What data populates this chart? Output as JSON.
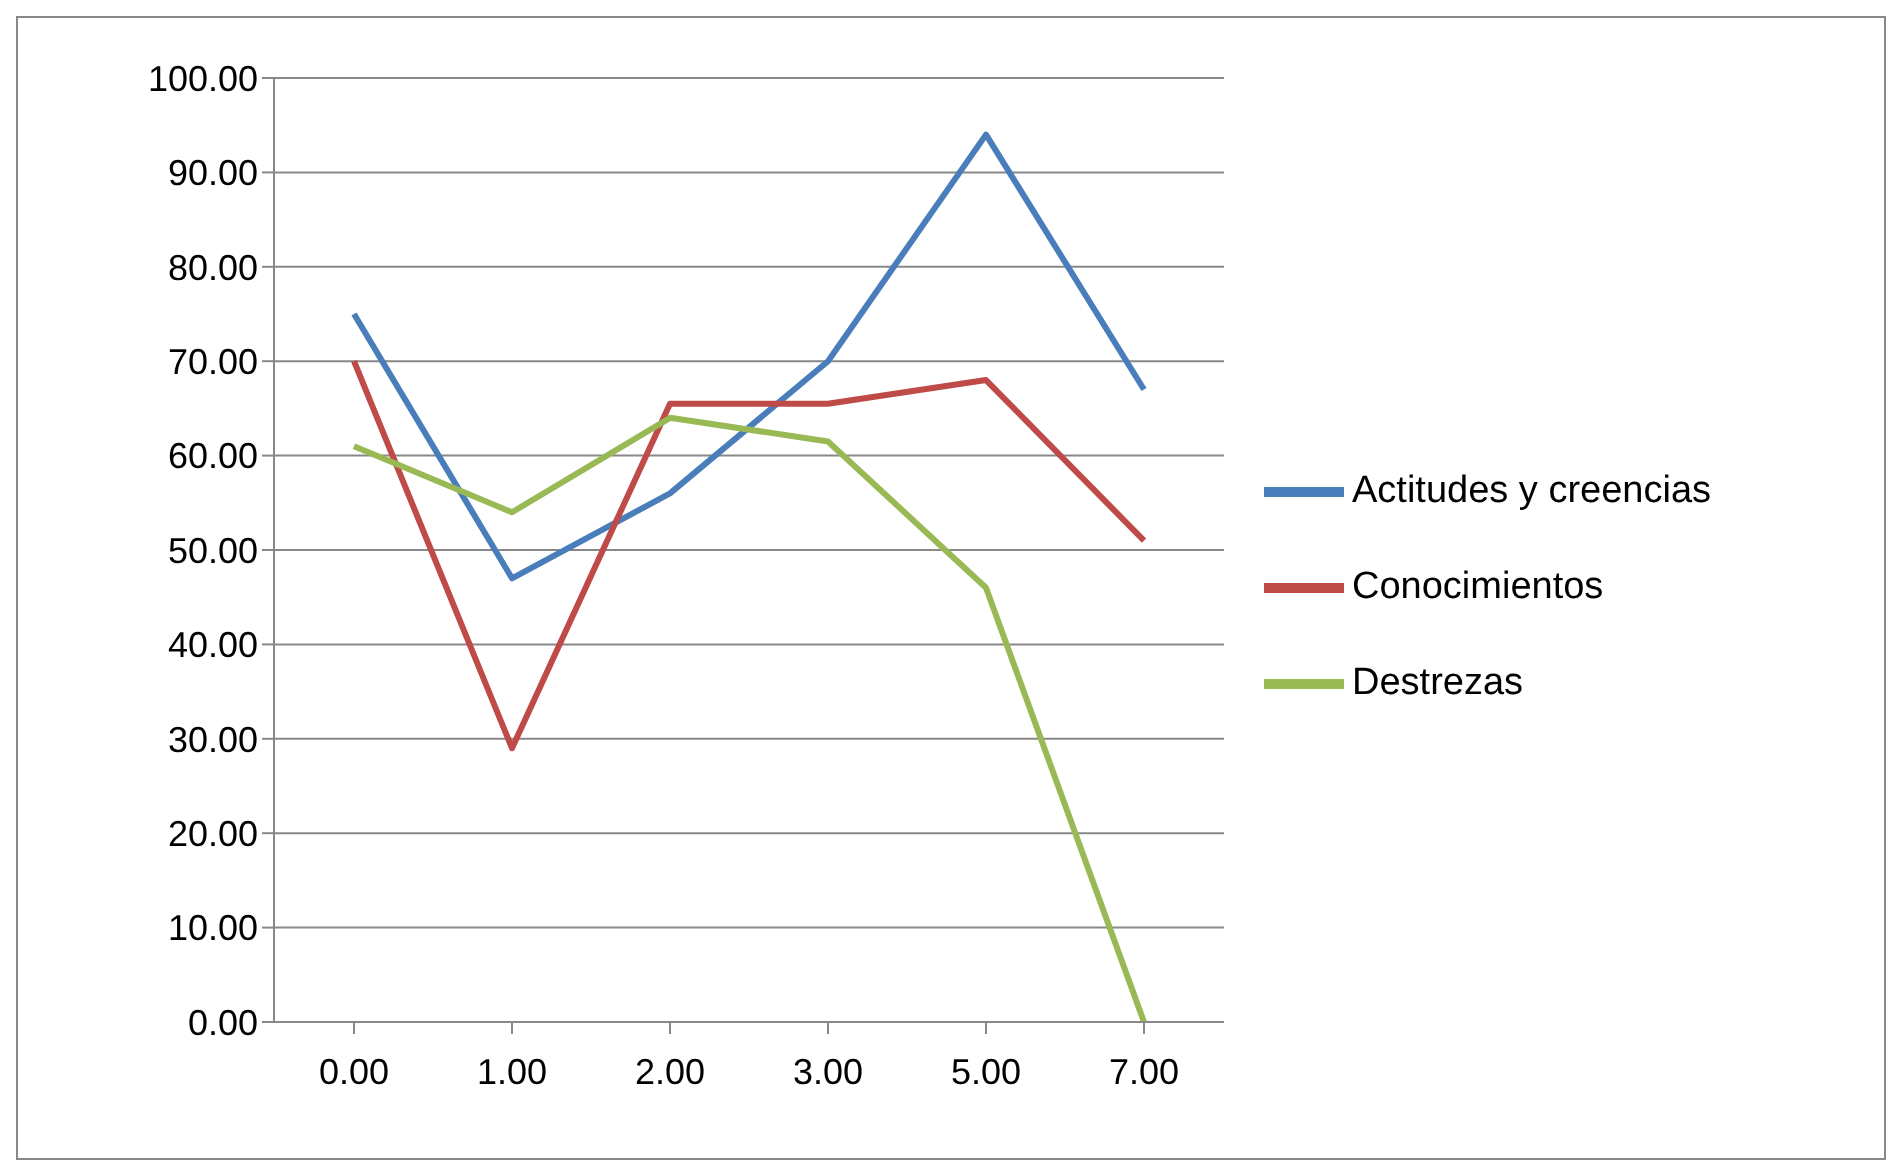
{
  "chart_data": {
    "type": "line",
    "categories": [
      "0.00",
      "1.00",
      "2.00",
      "3.00",
      "5.00",
      "7.00"
    ],
    "series": [
      {
        "name": "Actitudes y creencias",
        "color": "#4a7ebb",
        "values": [
          75,
          47,
          56,
          70,
          94,
          67
        ]
      },
      {
        "name": "Conocimientos",
        "color": "#be4b48",
        "values": [
          70,
          29,
          65.5,
          65.5,
          68,
          51
        ]
      },
      {
        "name": "Destrezas",
        "color": "#98b954",
        "values": [
          61,
          54,
          64,
          61.5,
          46,
          0
        ]
      }
    ],
    "ylim": [
      0,
      100
    ],
    "yticks": [
      {
        "value": 0,
        "label": "0.00"
      },
      {
        "value": 10,
        "label": "10.00"
      },
      {
        "value": 20,
        "label": "20.00"
      },
      {
        "value": 30,
        "label": "30.00"
      },
      {
        "value": 40,
        "label": "40.00"
      },
      {
        "value": 50,
        "label": "50.00"
      },
      {
        "value": 60,
        "label": "60.00"
      },
      {
        "value": 70,
        "label": "70.00"
      },
      {
        "value": 80,
        "label": "80.00"
      },
      {
        "value": 90,
        "label": "90.00"
      },
      {
        "value": 100,
        "label": "100.00"
      }
    ],
    "grid": "y",
    "legend": "right"
  }
}
